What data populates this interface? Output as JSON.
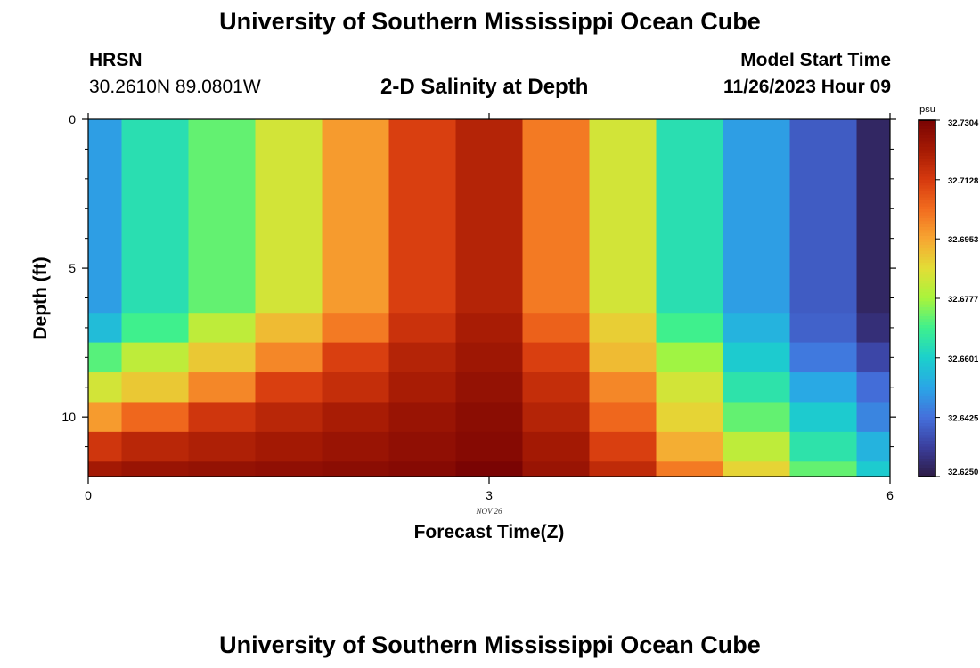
{
  "header": {
    "title": "University of Southern Mississippi Ocean Cube",
    "station": "HRSN",
    "coordinates": "30.2610N  89.0801W",
    "product": "2-D Salinity at Depth",
    "start_label": "Model Start Time",
    "start_time": "11/26/2023 Hour 09"
  },
  "footer": {
    "title": "University of Southern Mississippi Ocean Cube"
  },
  "chart_data": {
    "type": "heatmap",
    "title": "2-D Salinity at Depth",
    "xlabel": "Forecast Time(Z)",
    "ylabel": "Depth (ft)",
    "xlim": [
      0,
      6
    ],
    "ylim": [
      0,
      12
    ],
    "x_ticks": [
      0,
      3,
      6
    ],
    "x_tick_labels": [
      "0",
      "3",
      "6"
    ],
    "y_ticks": [
      0,
      5,
      10
    ],
    "y_tick_labels": [
      "0",
      "5",
      "10"
    ],
    "date_annotation": "NOV 26",
    "colorbar": {
      "unit": "psu",
      "min": 32.625,
      "max": 32.7304,
      "tick_values": [
        32.625,
        32.6425,
        32.6601,
        32.6777,
        32.6953,
        32.7128,
        32.7304
      ],
      "tick_labels": [
        "32.6250",
        "32.6425",
        "32.6601",
        "32.6777",
        "32.6953",
        "32.7128",
        "32.7304"
      ],
      "colormap": [
        "#2d1b45",
        "#3b3f9e",
        "#4470dc",
        "#2aa6e6",
        "#1bd0cc",
        "#3ef08e",
        "#a8f43c",
        "#e2de36",
        "#f7a632",
        "#f26c1f",
        "#d63a0e",
        "#a51a04",
        "#7a0403"
      ]
    },
    "time_edges": [
      0,
      0.25,
      0.75,
      1.25,
      1.75,
      2.25,
      2.75,
      3.25,
      3.75,
      4.25,
      4.75,
      5.25,
      5.75,
      6
    ],
    "depth_edges": [
      0,
      6.5,
      7.5,
      8.5,
      9.5,
      10.5,
      11.5,
      12
    ],
    "values": [
      [
        32.65,
        32.664,
        32.672,
        32.684,
        32.697,
        32.712,
        32.719,
        32.702,
        32.684,
        32.664,
        32.65,
        32.639,
        32.628
      ],
      [
        32.656,
        32.669,
        32.681,
        32.692,
        32.702,
        32.715,
        32.721,
        32.706,
        32.689,
        32.669,
        32.654,
        32.64,
        32.63
      ],
      [
        32.671,
        32.681,
        32.69,
        32.7,
        32.712,
        32.719,
        32.723,
        32.712,
        32.692,
        32.677,
        32.659,
        32.644,
        32.635
      ],
      [
        32.684,
        32.69,
        32.7,
        32.712,
        32.716,
        32.721,
        32.725,
        32.716,
        32.7,
        32.684,
        32.665,
        32.652,
        32.642
      ],
      [
        32.697,
        32.705,
        32.714,
        32.718,
        32.721,
        32.724,
        32.727,
        32.719,
        32.705,
        32.688,
        32.672,
        32.659,
        32.646
      ],
      [
        32.714,
        32.718,
        32.72,
        32.722,
        32.724,
        32.726,
        32.728,
        32.722,
        32.712,
        32.694,
        32.681,
        32.665,
        32.654
      ],
      [
        32.722,
        32.724,
        32.725,
        32.726,
        32.727,
        32.728,
        32.7304,
        32.724,
        32.717,
        32.702,
        32.688,
        32.672,
        32.659
      ]
    ]
  }
}
